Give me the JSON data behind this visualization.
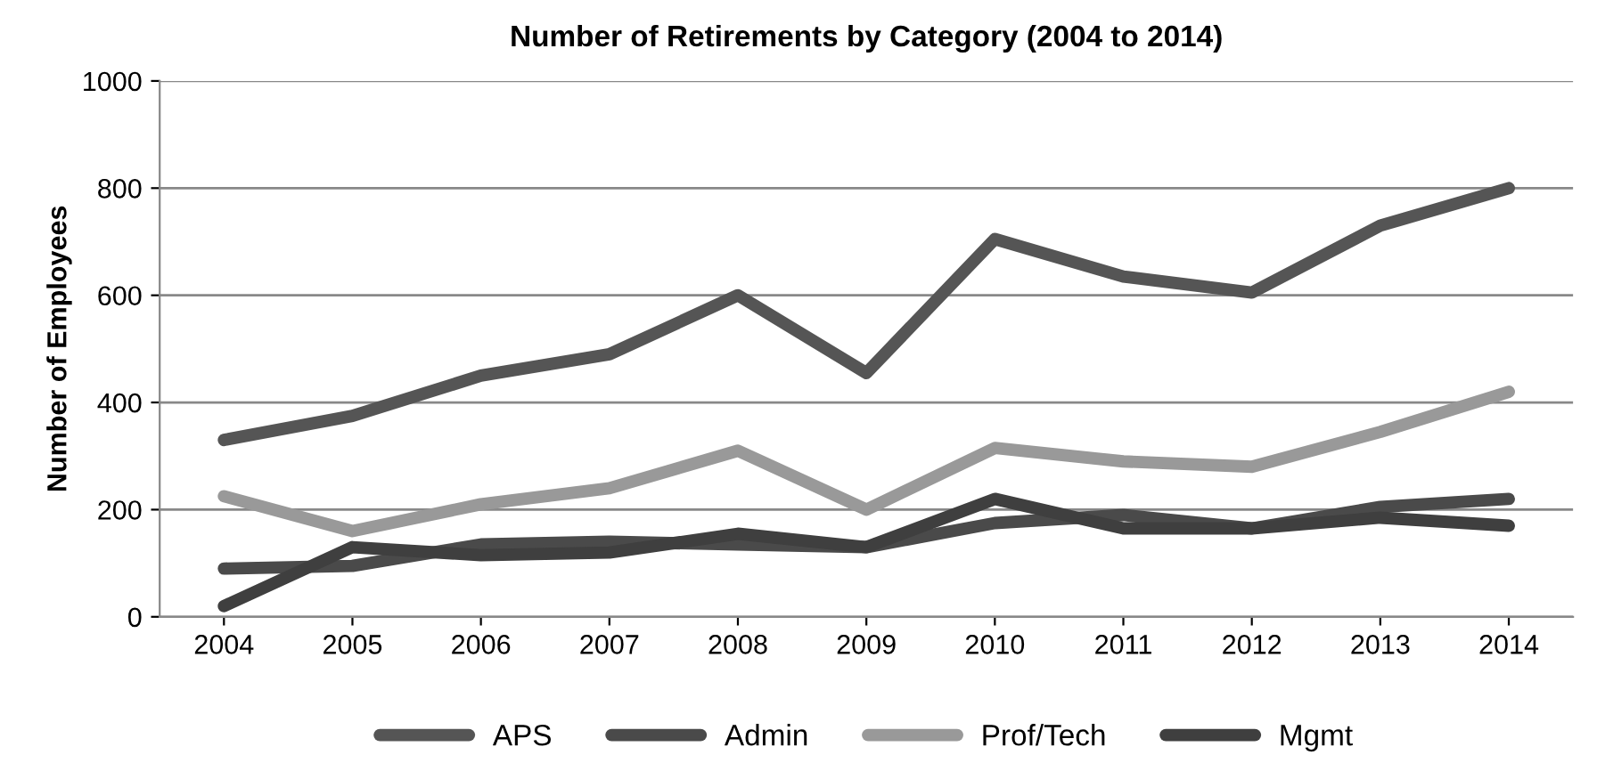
{
  "chart_data": {
    "type": "line",
    "title": "Number of Retirements by Category (2004 to 2014)",
    "ylabel": "Number of Employees",
    "categories": [
      "2004",
      "2005",
      "2006",
      "2007",
      "2008",
      "2009",
      "2010",
      "2011",
      "2012",
      "2013",
      "2014"
    ],
    "series": [
      {
        "name": "APS",
        "color": "#555555",
        "values": [
          330,
          375,
          450,
          490,
          600,
          455,
          705,
          635,
          605,
          730,
          800
        ]
      },
      {
        "name": "Admin",
        "color": "#4a4a4a",
        "values": [
          90,
          95,
          135,
          140,
          135,
          130,
          175,
          190,
          165,
          205,
          220
        ]
      },
      {
        "name": "Prof/Tech",
        "color": "#999999",
        "values": [
          225,
          160,
          210,
          240,
          310,
          200,
          315,
          290,
          280,
          345,
          420
        ]
      },
      {
        "name": "Mgmt",
        "color": "#3f3f3f",
        "values": [
          20,
          130,
          115,
          120,
          155,
          130,
          220,
          165,
          165,
          185,
          170
        ]
      }
    ],
    "ylim": [
      0,
      1000
    ],
    "yticks": [
      0,
      200,
      400,
      600,
      800,
      1000
    ],
    "grid": "y",
    "legend": "bottom",
    "marker": "none",
    "line_style": "solid"
  }
}
